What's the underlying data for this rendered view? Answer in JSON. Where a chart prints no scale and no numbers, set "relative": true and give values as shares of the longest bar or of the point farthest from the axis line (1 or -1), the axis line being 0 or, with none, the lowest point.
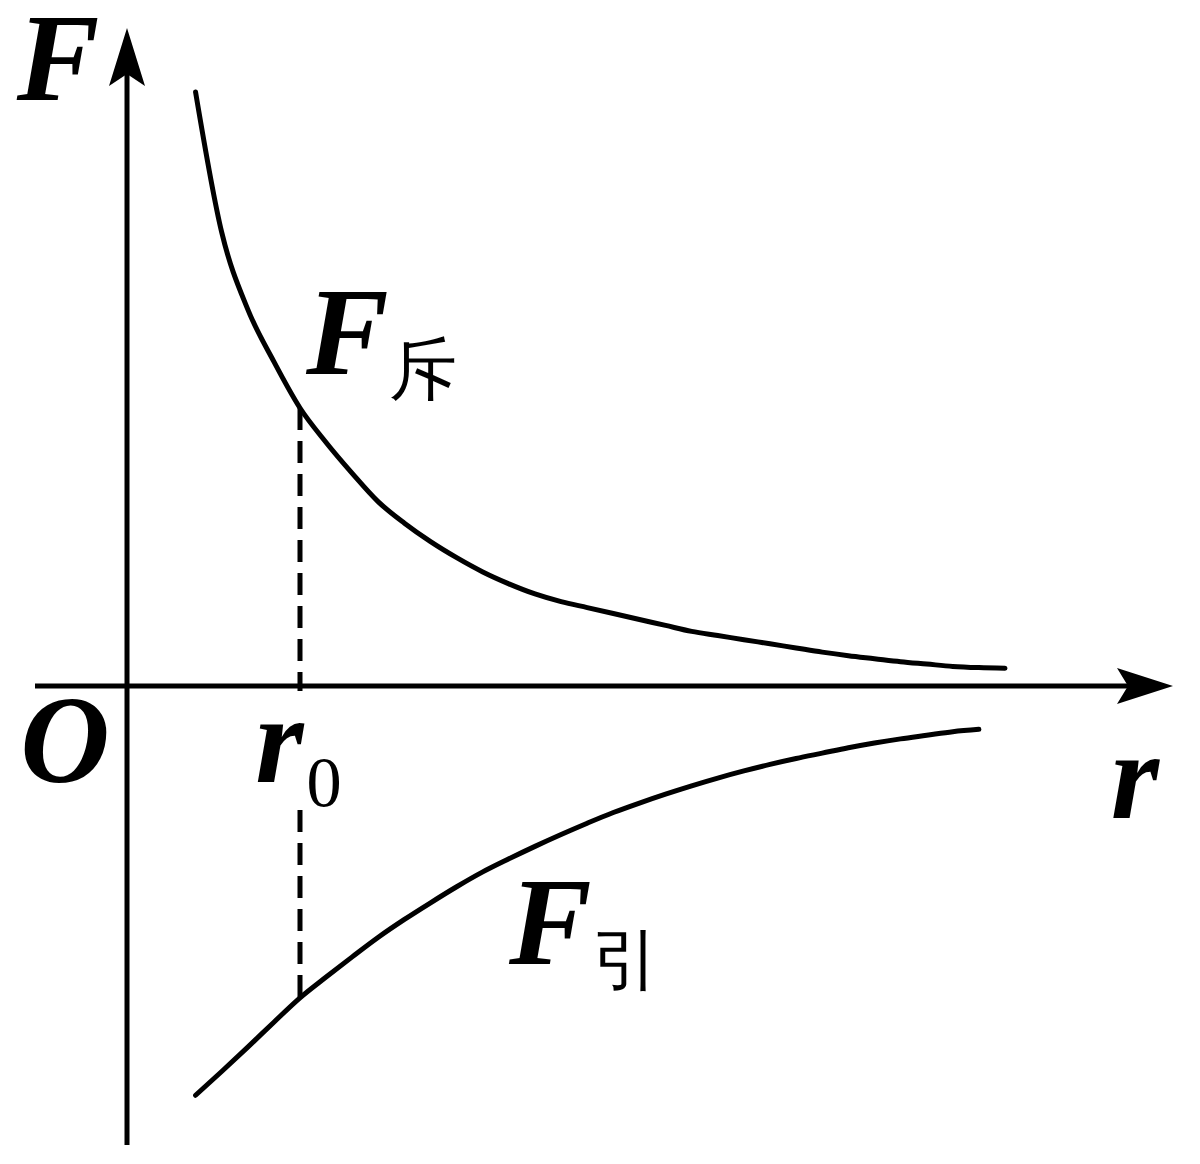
{
  "chart_data": {
    "type": "line",
    "relative": true,
    "xlabel": "r",
    "ylabel": "F",
    "tick_labels": "x",
    "line_style": "solid",
    "marker": "none",
    "categories": [
      "O",
      null,
      null,
      null,
      null,
      null,
      null,
      null,
      null,
      "r₀",
      null,
      null,
      null,
      null,
      null,
      null,
      null,
      null,
      null,
      null,
      null,
      null,
      null,
      null,
      null,
      null,
      null,
      null,
      null,
      null,
      null,
      null,
      null,
      null,
      null,
      null,
      null
    ],
    "series": [
      {
        "name": "F$_{斥}$",
        "color": "#000000",
        "values": [
          null,
          null,
          null,
          null,
          null,
          1,
          0.764,
          0.634,
          0.546,
          0.468,
          0.41,
          0.358,
          0.31,
          0.274,
          0.243,
          0.216,
          0.192,
          0.172,
          0.155,
          0.142,
          0.132,
          0.122,
          0.112,
          0.102,
          0.092,
          0.085,
          0.078,
          0.071,
          0.064,
          0.057,
          0.051,
          0.046,
          0.041,
          0.037,
          0.033,
          0.031,
          0.03
        ]
      },
      {
        "name": "F$_{引}$",
        "color": "#000000",
        "values": [
          null,
          null,
          null,
          null,
          null,
          -0.689,
          -0.649,
          -0.608,
          -0.566,
          -0.525,
          -0.49,
          -0.456,
          -0.423,
          -0.393,
          -0.365,
          -0.338,
          -0.313,
          -0.291,
          -0.27,
          -0.25,
          -0.231,
          -0.213,
          -0.197,
          -0.182,
          -0.168,
          -0.155,
          -0.143,
          -0.132,
          -0.122,
          -0.113,
          -0.104,
          -0.096,
          -0.089,
          -0.083,
          -0.077,
          -0.073,
          null
        ]
      }
    ],
    "ref_lines": [
      {
        "axis": "x",
        "value": "r₀",
        "line_style": "dashed",
        "color": "#000000"
      }
    ]
  }
}
